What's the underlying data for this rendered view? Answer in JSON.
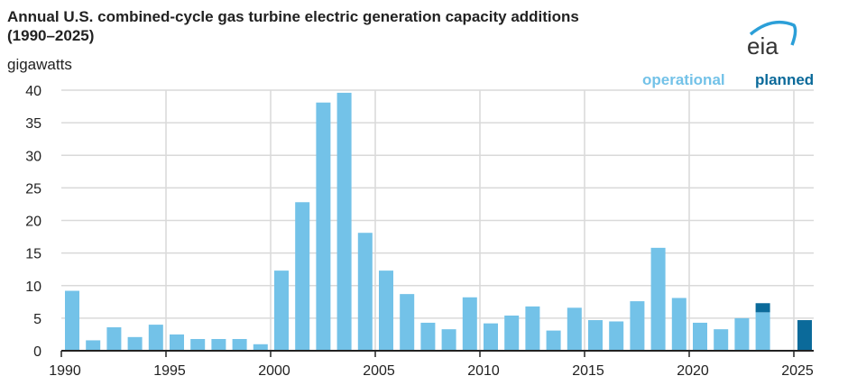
{
  "chart_data": {
    "type": "bar",
    "stacked": true,
    "title": "Annual U.S. combined-cycle gas turbine electric generation capacity additions",
    "subtitle": "(1990–2025)",
    "ylabel": "gigawatts",
    "xlabel": "",
    "ylim": [
      0,
      40
    ],
    "yticks": [
      0,
      5,
      10,
      15,
      20,
      25,
      30,
      35,
      40
    ],
    "xticks": [
      1990,
      1995,
      2000,
      2005,
      2010,
      2015,
      2020,
      2025
    ],
    "grid": true,
    "legend_placement": "top-right",
    "categories": [
      1990,
      1991,
      1992,
      1993,
      1994,
      1995,
      1996,
      1997,
      1998,
      1999,
      2000,
      2001,
      2002,
      2003,
      2004,
      2005,
      2006,
      2007,
      2008,
      2009,
      2010,
      2011,
      2012,
      2013,
      2014,
      2015,
      2016,
      2017,
      2018,
      2019,
      2020,
      2021,
      2022,
      2023,
      2024,
      2025
    ],
    "series": [
      {
        "name": "operational",
        "color": "#73c2e8",
        "values": [
          9.2,
          1.6,
          3.6,
          2.1,
          4.0,
          2.5,
          1.8,
          1.8,
          1.8,
          1.0,
          12.3,
          22.8,
          38.1,
          39.6,
          18.1,
          12.3,
          8.7,
          4.3,
          3.3,
          8.2,
          4.2,
          5.4,
          6.8,
          3.1,
          6.6,
          4.7,
          4.5,
          7.6,
          15.8,
          8.1,
          4.3,
          3.3,
          5.0,
          5.9,
          0,
          0
        ]
      },
      {
        "name": "planned",
        "color": "#0b6a9a",
        "values": [
          0,
          0,
          0,
          0,
          0,
          0,
          0,
          0,
          0,
          0,
          0,
          0,
          0,
          0,
          0,
          0,
          0,
          0,
          0,
          0,
          0,
          0,
          0,
          0,
          0,
          0,
          0,
          0,
          0,
          0,
          0,
          0,
          0,
          1.4,
          0.1,
          4.7
        ]
      }
    ]
  },
  "logo_text": "eia"
}
